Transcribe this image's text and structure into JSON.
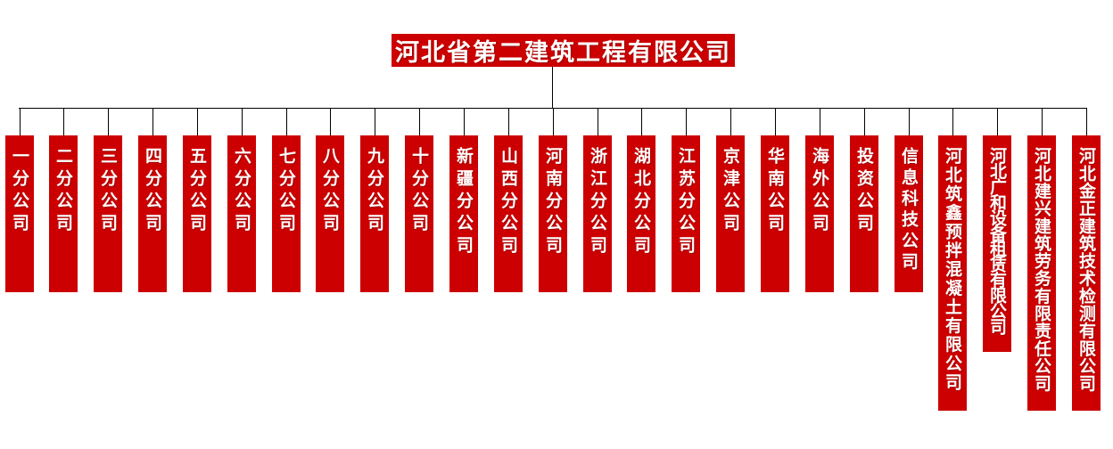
{
  "root": {
    "title": "河北省第二建筑工程有限公司"
  },
  "children": [
    {
      "label": "一分公司"
    },
    {
      "label": "二分公司"
    },
    {
      "label": "三分公司"
    },
    {
      "label": "四分公司"
    },
    {
      "label": "五分公司"
    },
    {
      "label": "六分公司"
    },
    {
      "label": "七分公司"
    },
    {
      "label": "八分公司"
    },
    {
      "label": "九分公司"
    },
    {
      "label": "十分公司"
    },
    {
      "label": "新疆分公司"
    },
    {
      "label": "山西分公司"
    },
    {
      "label": "河南分公司"
    },
    {
      "label": "浙江分公司"
    },
    {
      "label": "湖北分公司"
    },
    {
      "label": "江苏分公司"
    },
    {
      "label": "京津公司"
    },
    {
      "label": "华南公司"
    },
    {
      "label": "海外公司"
    },
    {
      "label": "投资公司"
    },
    {
      "label": "信息科技公司"
    },
    {
      "label": "河北筑鑫预拌混凝土有限公司"
    },
    {
      "label": "河北广和设备租赁有限公司"
    },
    {
      "label": "河北建兴建筑劳务有限责任公司"
    },
    {
      "label": "河北金正建筑技术检测有限公司"
    }
  ],
  "colors": {
    "header_red": "#cc0000",
    "box_red": "#cc0000",
    "line": "#000000",
    "text": "#ffffff"
  }
}
